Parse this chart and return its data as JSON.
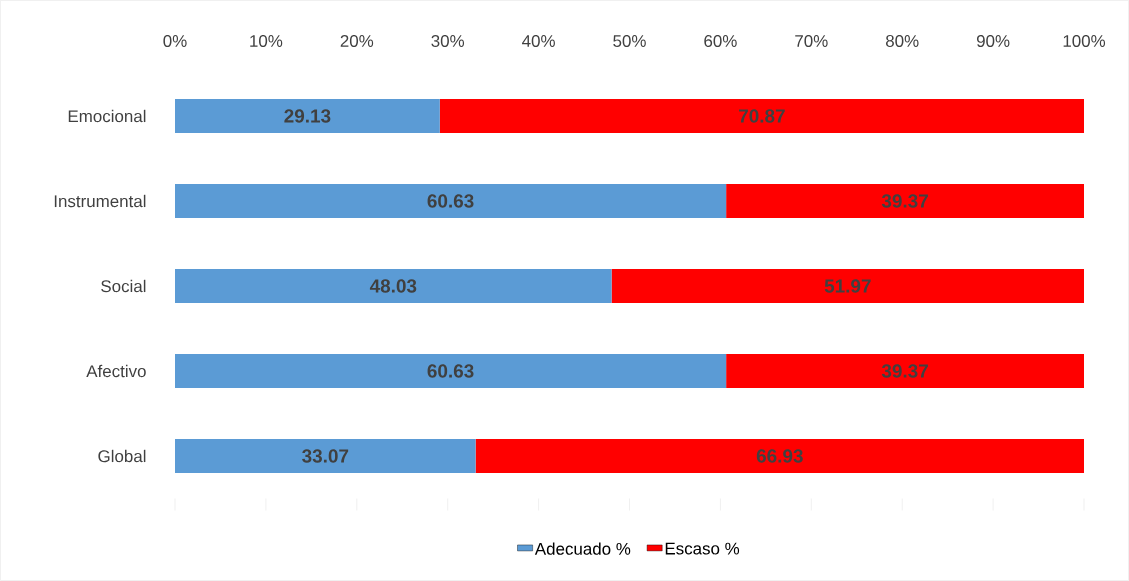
{
  "chart_data": {
    "type": "bar",
    "orientation": "horizontal",
    "stacked": true,
    "categories": [
      "Emocional",
      "Instrumental",
      "Social",
      "Afectivo",
      "Global"
    ],
    "series": [
      {
        "name": "Adecuado %",
        "color": "#5b9bd5",
        "values": [
          29.13,
          60.63,
          48.03,
          60.63,
          33.07
        ]
      },
      {
        "name": "Escaso %",
        "color": "#ff0000",
        "values": [
          70.87,
          39.37,
          51.97,
          39.37,
          66.93
        ]
      }
    ],
    "xlim": [
      0,
      100
    ],
    "xticks": [
      {
        "value": 0,
        "label": "0%"
      },
      {
        "value": 10,
        "label": "10%"
      },
      {
        "value": 20,
        "label": "20%"
      },
      {
        "value": 30,
        "label": "30%"
      },
      {
        "value": 40,
        "label": "40%"
      },
      {
        "value": 50,
        "label": "50%"
      },
      {
        "value": 60,
        "label": "60%"
      },
      {
        "value": 70,
        "label": "70%"
      },
      {
        "value": 80,
        "label": "80%"
      },
      {
        "value": 90,
        "label": "90%"
      },
      {
        "value": 100,
        "label": "100%"
      }
    ],
    "data_labels": true,
    "legend": "bottom"
  }
}
